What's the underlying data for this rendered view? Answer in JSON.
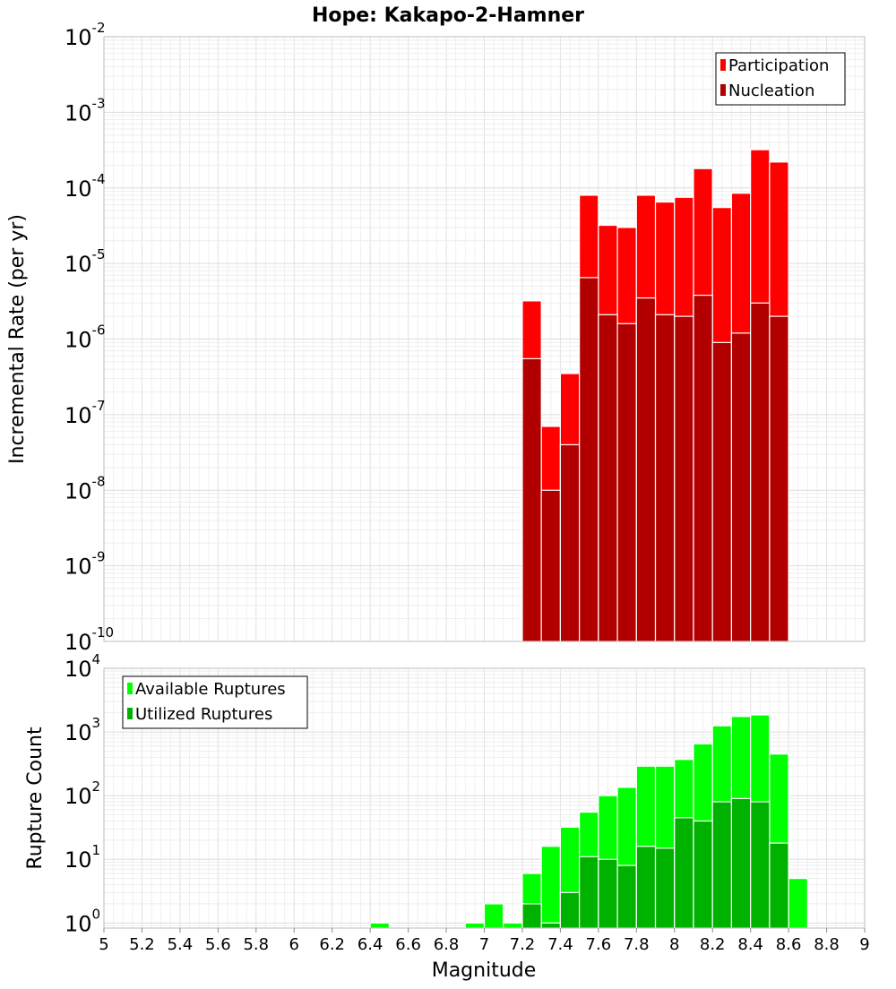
{
  "chart_data": {
    "title": "Hope: Kakapo-2-Hamner",
    "xlabel": "Magnitude",
    "x_ticks": [
      "5",
      "5.2",
      "5.4",
      "5.6",
      "5.8",
      "6",
      "6.2",
      "6.4",
      "6.6",
      "6.8",
      "7",
      "7.2",
      "7.4",
      "7.6",
      "7.8",
      "8",
      "8.2",
      "8.4",
      "8.6",
      "8.8",
      "9"
    ],
    "xlim": [
      5,
      9
    ],
    "bin_width": 0.1,
    "panels": [
      {
        "type": "bar",
        "ylabel": "Incremental Rate (per yr)",
        "yscale": "log",
        "ylim_exp": [
          -10,
          -2
        ],
        "y_ticks": [
          {
            "base": "10",
            "exp": "-10"
          },
          {
            "base": "10",
            "exp": "-9"
          },
          {
            "base": "10",
            "exp": "-8"
          },
          {
            "base": "10",
            "exp": "-7"
          },
          {
            "base": "10",
            "exp": "-6"
          },
          {
            "base": "10",
            "exp": "-5"
          },
          {
            "base": "10",
            "exp": "-4"
          },
          {
            "base": "10",
            "exp": "-3"
          },
          {
            "base": "10",
            "exp": "-2"
          }
        ],
        "grid": true,
        "legend_position": "top-right",
        "series": [
          {
            "name": "Participation",
            "color": "#ff0000",
            "x": [
              7.25,
              7.35,
              7.45,
              7.55,
              7.65,
              7.75,
              7.85,
              7.95,
              8.05,
              8.15,
              8.25,
              8.35,
              8.45,
              8.55
            ],
            "values": [
              3.2e-06,
              7e-08,
              3.5e-07,
              8e-05,
              3.2e-05,
              3e-05,
              8e-05,
              6.5e-05,
              7.5e-05,
              0.00018,
              5.5e-05,
              8.5e-05,
              0.00032,
              0.00022
            ]
          },
          {
            "name": "Nucleation",
            "color": "#b20000",
            "x": [
              7.25,
              7.35,
              7.45,
              7.55,
              7.65,
              7.75,
              7.85,
              7.95,
              8.05,
              8.15,
              8.25,
              8.35,
              8.45,
              8.55
            ],
            "values": [
              5.5e-07,
              1e-08,
              4e-08,
              6.5e-06,
              2.1e-06,
              1.6e-06,
              3.5e-06,
              2.1e-06,
              2e-06,
              3.8e-06,
              9e-07,
              1.2e-06,
              3e-06,
              2e-06
            ]
          }
        ]
      },
      {
        "type": "bar",
        "ylabel": "Rupture Count",
        "yscale": "log",
        "ylim_exp": [
          -0.08,
          4
        ],
        "y_ticks": [
          {
            "base": "10",
            "exp": "0"
          },
          {
            "base": "10",
            "exp": "1"
          },
          {
            "base": "10",
            "exp": "2"
          },
          {
            "base": "10",
            "exp": "3"
          },
          {
            "base": "10",
            "exp": "4"
          }
        ],
        "grid": true,
        "legend_position": "top-left",
        "series": [
          {
            "name": "Available Ruptures",
            "color": "#00ff00",
            "x": [
              6.45,
              6.95,
              7.05,
              7.15,
              7.25,
              7.35,
              7.45,
              7.55,
              7.65,
              7.75,
              7.85,
              7.95,
              8.05,
              8.15,
              8.25,
              8.35,
              8.45,
              8.55,
              8.65
            ],
            "values": [
              1,
              1,
              2,
              1,
              6,
              16,
              32,
              55,
              100,
              135,
              290,
              290,
              370,
              650,
              1250,
              1750,
              1850,
              450,
              5
            ]
          },
          {
            "name": "Utilized Ruptures",
            "color": "#00b200",
            "x": [
              7.25,
              7.35,
              7.45,
              7.55,
              7.65,
              7.75,
              7.85,
              7.95,
              8.05,
              8.15,
              8.25,
              8.35,
              8.45,
              8.55
            ],
            "values": [
              2,
              1,
              3,
              11,
              10,
              8,
              16,
              15,
              45,
              40,
              80,
              90,
              80,
              18
            ]
          }
        ]
      }
    ]
  }
}
